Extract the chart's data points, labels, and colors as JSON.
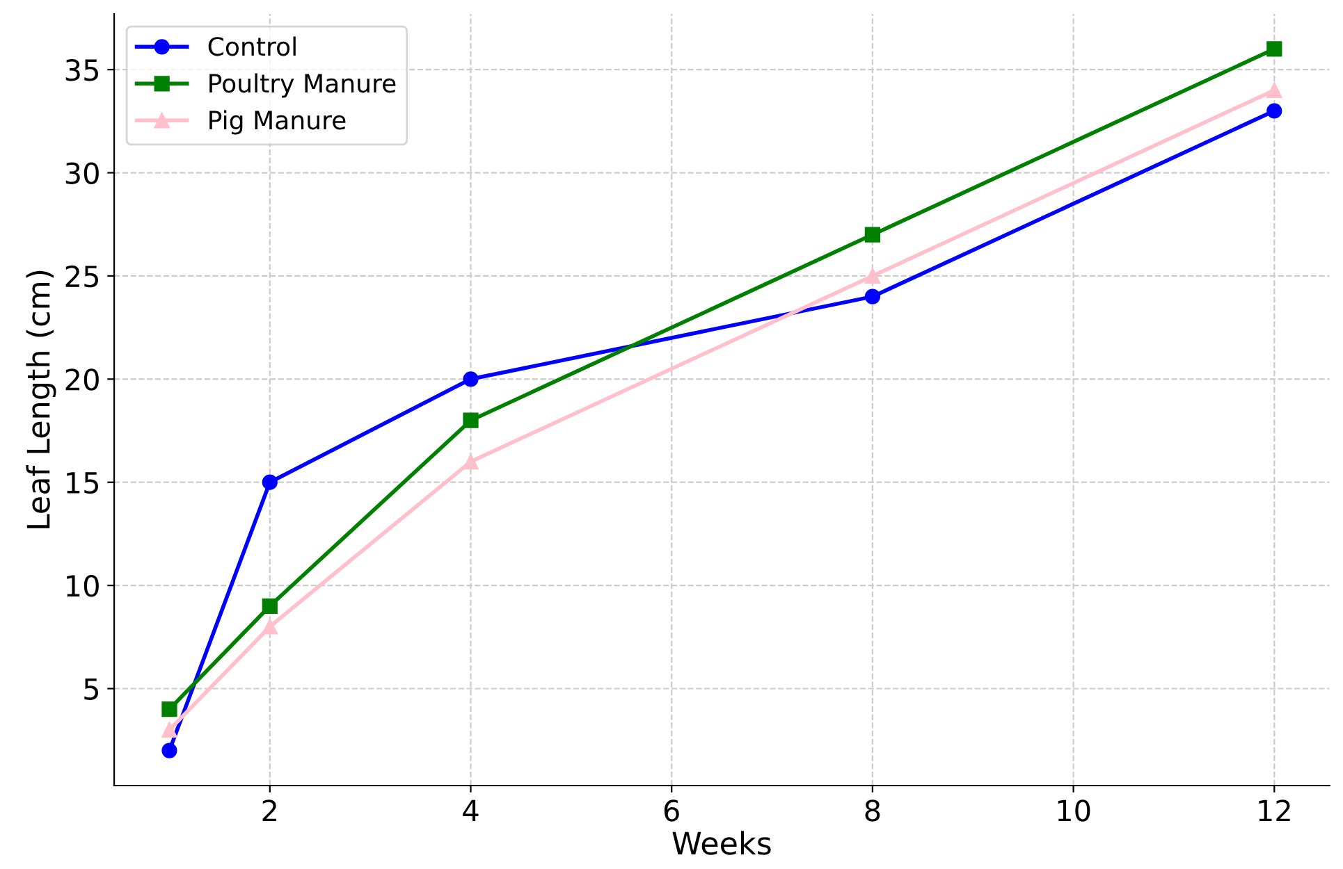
{
  "chart_data": {
    "type": "line",
    "xlabel": "Weeks",
    "ylabel": "Leaf Length (cm)",
    "x": [
      1,
      2,
      4,
      8,
      12
    ],
    "series": [
      {
        "name": "Control",
        "color": "#0000ff",
        "marker": "circle",
        "values": [
          2,
          15,
          20,
          24,
          33
        ]
      },
      {
        "name": "Poultry Manure",
        "color": "#008000",
        "marker": "square",
        "values": [
          4,
          9,
          18,
          27,
          36
        ]
      },
      {
        "name": "Pig Manure",
        "color": "#ffc0cb",
        "marker": "triangle",
        "values": [
          3,
          8,
          16,
          25,
          34
        ]
      }
    ],
    "xlim": [
      0.45,
      12.55
    ],
    "xticks": [
      2,
      4,
      6,
      8,
      10,
      12
    ],
    "ylim": [
      0.3,
      37.7
    ],
    "yticks": [
      5,
      10,
      15,
      20,
      25,
      30,
      35
    ],
    "grid": true,
    "legend": "top left",
    "line_style": "solid"
  }
}
